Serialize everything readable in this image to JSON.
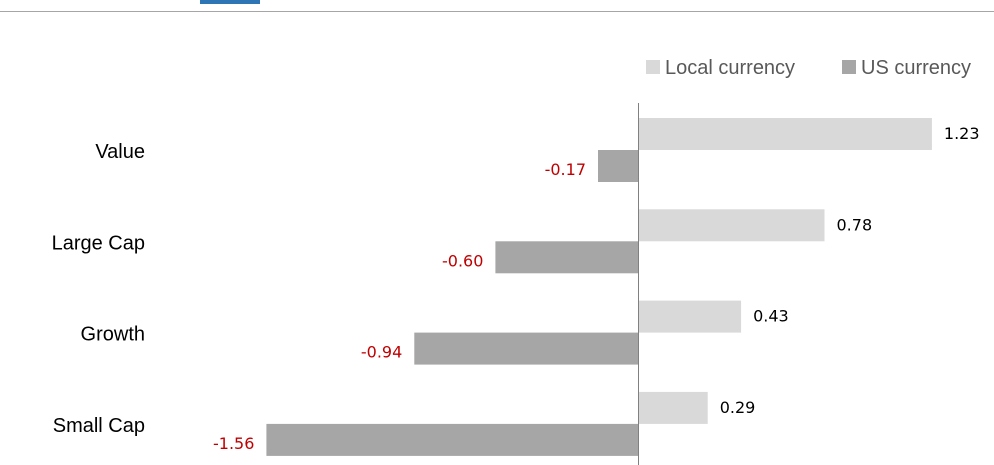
{
  "colors": {
    "local": "#d9d9d9",
    "us": "#a6a6a6",
    "negative_label": "#c00000",
    "positive_label": "#000000",
    "header_rule": "#a6a6a6",
    "axis": "#808080",
    "header_accent": "#2e75b6"
  },
  "chart_data": {
    "type": "bar",
    "orientation": "horizontal",
    "categories": [
      "Value",
      "Large Cap",
      "Growth",
      "Small Cap"
    ],
    "series": [
      {
        "name": "Local currency",
        "values": [
          1.23,
          0.78,
          0.43,
          0.29
        ]
      },
      {
        "name": "US currency",
        "values": [
          -0.17,
          -0.6,
          -0.94,
          -1.56
        ]
      }
    ],
    "value_labels": {
      "Local currency": [
        "1.23",
        "0.78",
        "0.43",
        "0.29"
      ],
      "US currency": [
        "-0.17",
        "-0.60",
        "-0.94",
        "-1.56"
      ]
    },
    "xlim": [
      -1.56,
      1.23
    ],
    "grid": false,
    "legend_position": "top-right"
  }
}
